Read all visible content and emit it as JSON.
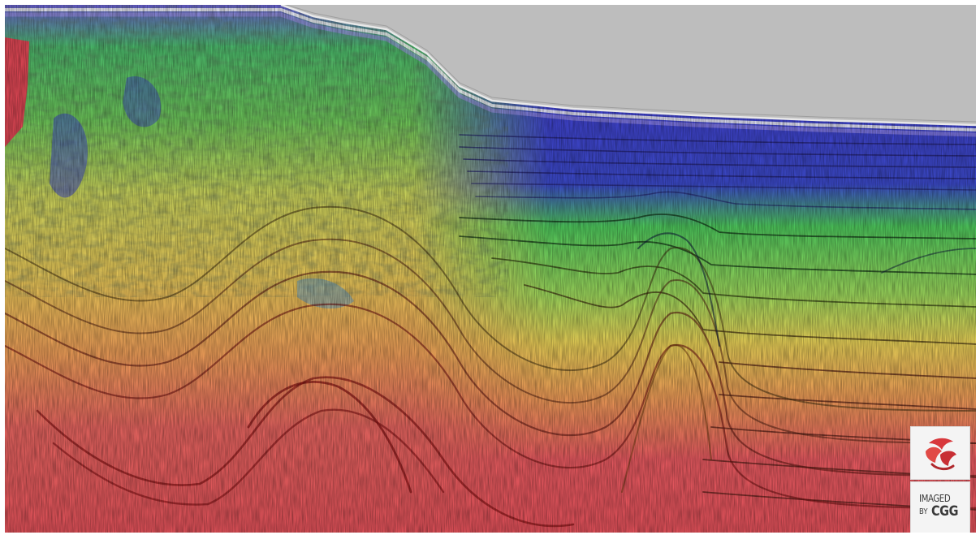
{
  "image": {
    "subject": "seismic-section",
    "colors": {
      "sky": "#bdbdbd",
      "deep_red": "#e0525a",
      "orange": "#e8944a",
      "yellow": "#dcc656",
      "green": "#5fc85a",
      "blue": "#4a4ccf",
      "violet": "#8d6ad8",
      "seafloor": "#f2f2f2"
    }
  },
  "watermark": {
    "logo_icon": "cgg-logo-icon",
    "line1": "IMAGED",
    "by": "BY",
    "brand": "CGG"
  }
}
